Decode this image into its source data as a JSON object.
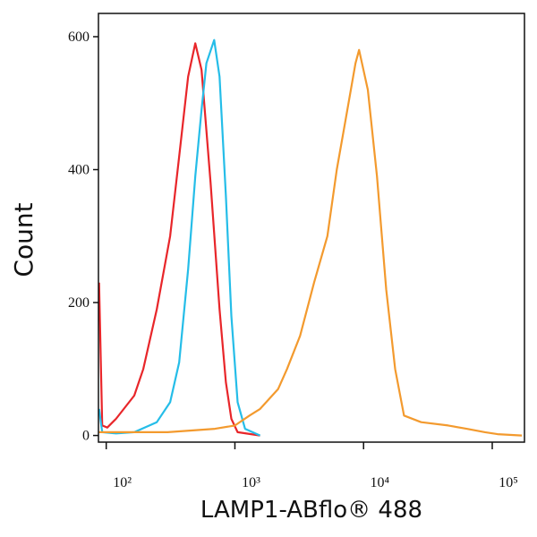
{
  "chart_data": {
    "type": "line",
    "x_label": "LAMP1-ABflo® 488",
    "y_label": "Count",
    "x_log": true,
    "xlim": [
      87,
      178000
    ],
    "ylim": [
      -10,
      635
    ],
    "xticks": [
      {
        "value": 100,
        "label": "10²"
      },
      {
        "value": 1000,
        "label": "10³"
      },
      {
        "value": 10000,
        "label": "10⁴"
      },
      {
        "value": 100000,
        "label": "10⁵"
      }
    ],
    "yticks": [
      0,
      200,
      400,
      600
    ],
    "series": [
      {
        "color": "#e8262a",
        "x": [
          88,
          93,
          102,
          119,
          165,
          194,
          247,
          314,
          369,
          433,
          492,
          551,
          647,
          760,
          851,
          938,
          1050,
          1570
        ],
        "values": [
          230,
          15,
          12,
          25,
          60,
          100,
          190,
          300,
          420,
          540,
          590,
          550,
          380,
          190,
          80,
          25,
          5,
          0
        ]
      },
      {
        "color": "#25bde8",
        "x": [
          88,
          93,
          119,
          165,
          247,
          314,
          369,
          433,
          492,
          551,
          600,
          690,
          760,
          851,
          938,
          1050,
          1200,
          1570
        ],
        "values": [
          40,
          5,
          3,
          5,
          20,
          50,
          110,
          250,
          390,
          490,
          560,
          595,
          540,
          360,
          180,
          50,
          10,
          0
        ]
      },
      {
        "color": "#f39a2e",
        "x": [
          88,
          300,
          700,
          1000,
          1300,
          1570,
          2170,
          2540,
          3210,
          4120,
          5230,
          6190,
          7320,
          8650,
          9230,
          10800,
          12700,
          15000,
          17600,
          20600,
          28000,
          45400,
          63300,
          87800,
          110000,
          170000
        ],
        "values": [
          5,
          5,
          10,
          15,
          30,
          40,
          70,
          100,
          150,
          230,
          300,
          400,
          480,
          560,
          580,
          520,
          390,
          220,
          100,
          30,
          20,
          15,
          10,
          5,
          2,
          0
        ]
      }
    ]
  }
}
